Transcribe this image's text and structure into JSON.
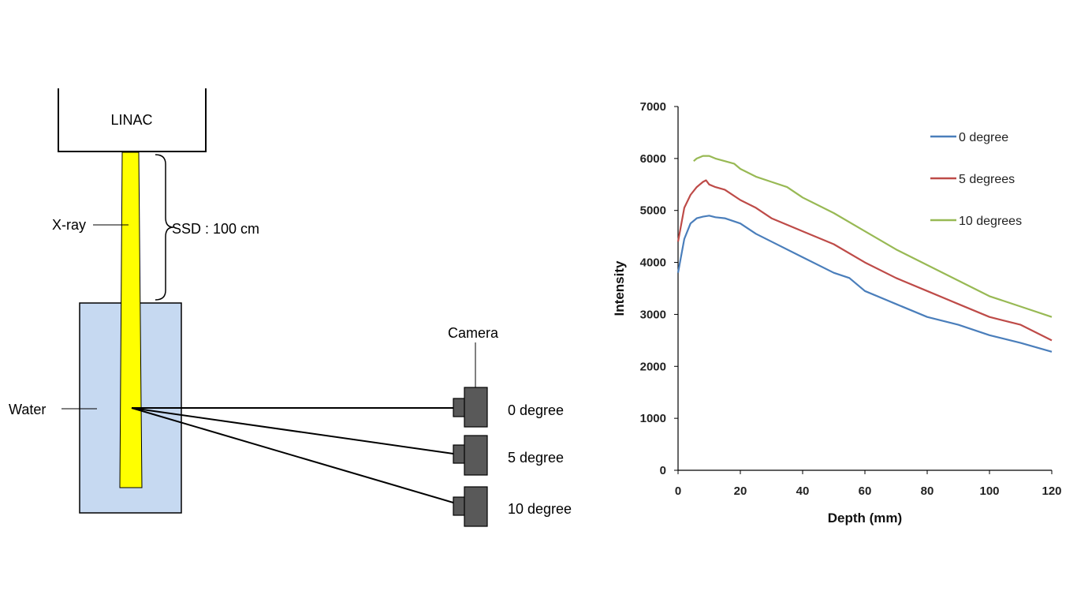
{
  "diagram": {
    "linac_label": "LINAC",
    "xray_label": "X-ray",
    "ssd_label": "SSD : 100 cm",
    "water_label": "Water",
    "camera_label": "Camera",
    "angle_labels": [
      "0 degree",
      "5 degree",
      "10 degree"
    ],
    "colors": {
      "beam": "#ffff00",
      "water": "#c6d9f1",
      "camera": "#595959"
    }
  },
  "chart_data": {
    "type": "line",
    "title": "",
    "xlabel": "Depth (mm)",
    "ylabel": "Intensity",
    "xlim": [
      0,
      120
    ],
    "ylim": [
      0,
      7000
    ],
    "xticks": [
      0,
      20,
      40,
      60,
      80,
      100,
      120
    ],
    "yticks": [
      0,
      1000,
      2000,
      3000,
      4000,
      5000,
      6000,
      7000
    ],
    "grid": false,
    "legend_position": "top-right",
    "series": [
      {
        "name": "0 degree",
        "color": "#4a7ebb",
        "x": [
          0,
          2,
          4,
          6,
          8,
          10,
          12,
          15,
          20,
          25,
          30,
          40,
          50,
          55,
          60,
          70,
          80,
          90,
          100,
          110,
          120
        ],
        "y": [
          3800,
          4450,
          4750,
          4850,
          4880,
          4900,
          4870,
          4850,
          4750,
          4550,
          4400,
          4100,
          3800,
          3700,
          3450,
          3200,
          2950,
          2800,
          2600,
          2450,
          2280
        ]
      },
      {
        "name": "5 degrees",
        "color": "#be4b48",
        "x": [
          0,
          2,
          4,
          6,
          8,
          9,
          10,
          12,
          15,
          20,
          25,
          30,
          40,
          50,
          60,
          70,
          80,
          90,
          100,
          110,
          120
        ],
        "y": [
          4400,
          5050,
          5300,
          5450,
          5550,
          5580,
          5500,
          5450,
          5400,
          5200,
          5050,
          4850,
          4600,
          4350,
          4000,
          3700,
          3450,
          3200,
          2950,
          2800,
          2500
        ]
      },
      {
        "name": "10 degrees",
        "color": "#98b954",
        "x": [
          5,
          6,
          8,
          10,
          12,
          15,
          18,
          20,
          25,
          30,
          35,
          40,
          50,
          60,
          70,
          80,
          90,
          100,
          110,
          120
        ],
        "y": [
          5950,
          6000,
          6050,
          6050,
          6000,
          5950,
          5900,
          5800,
          5650,
          5550,
          5450,
          5250,
          4950,
          4600,
          4250,
          3950,
          3650,
          3350,
          3150,
          2950
        ]
      }
    ]
  }
}
